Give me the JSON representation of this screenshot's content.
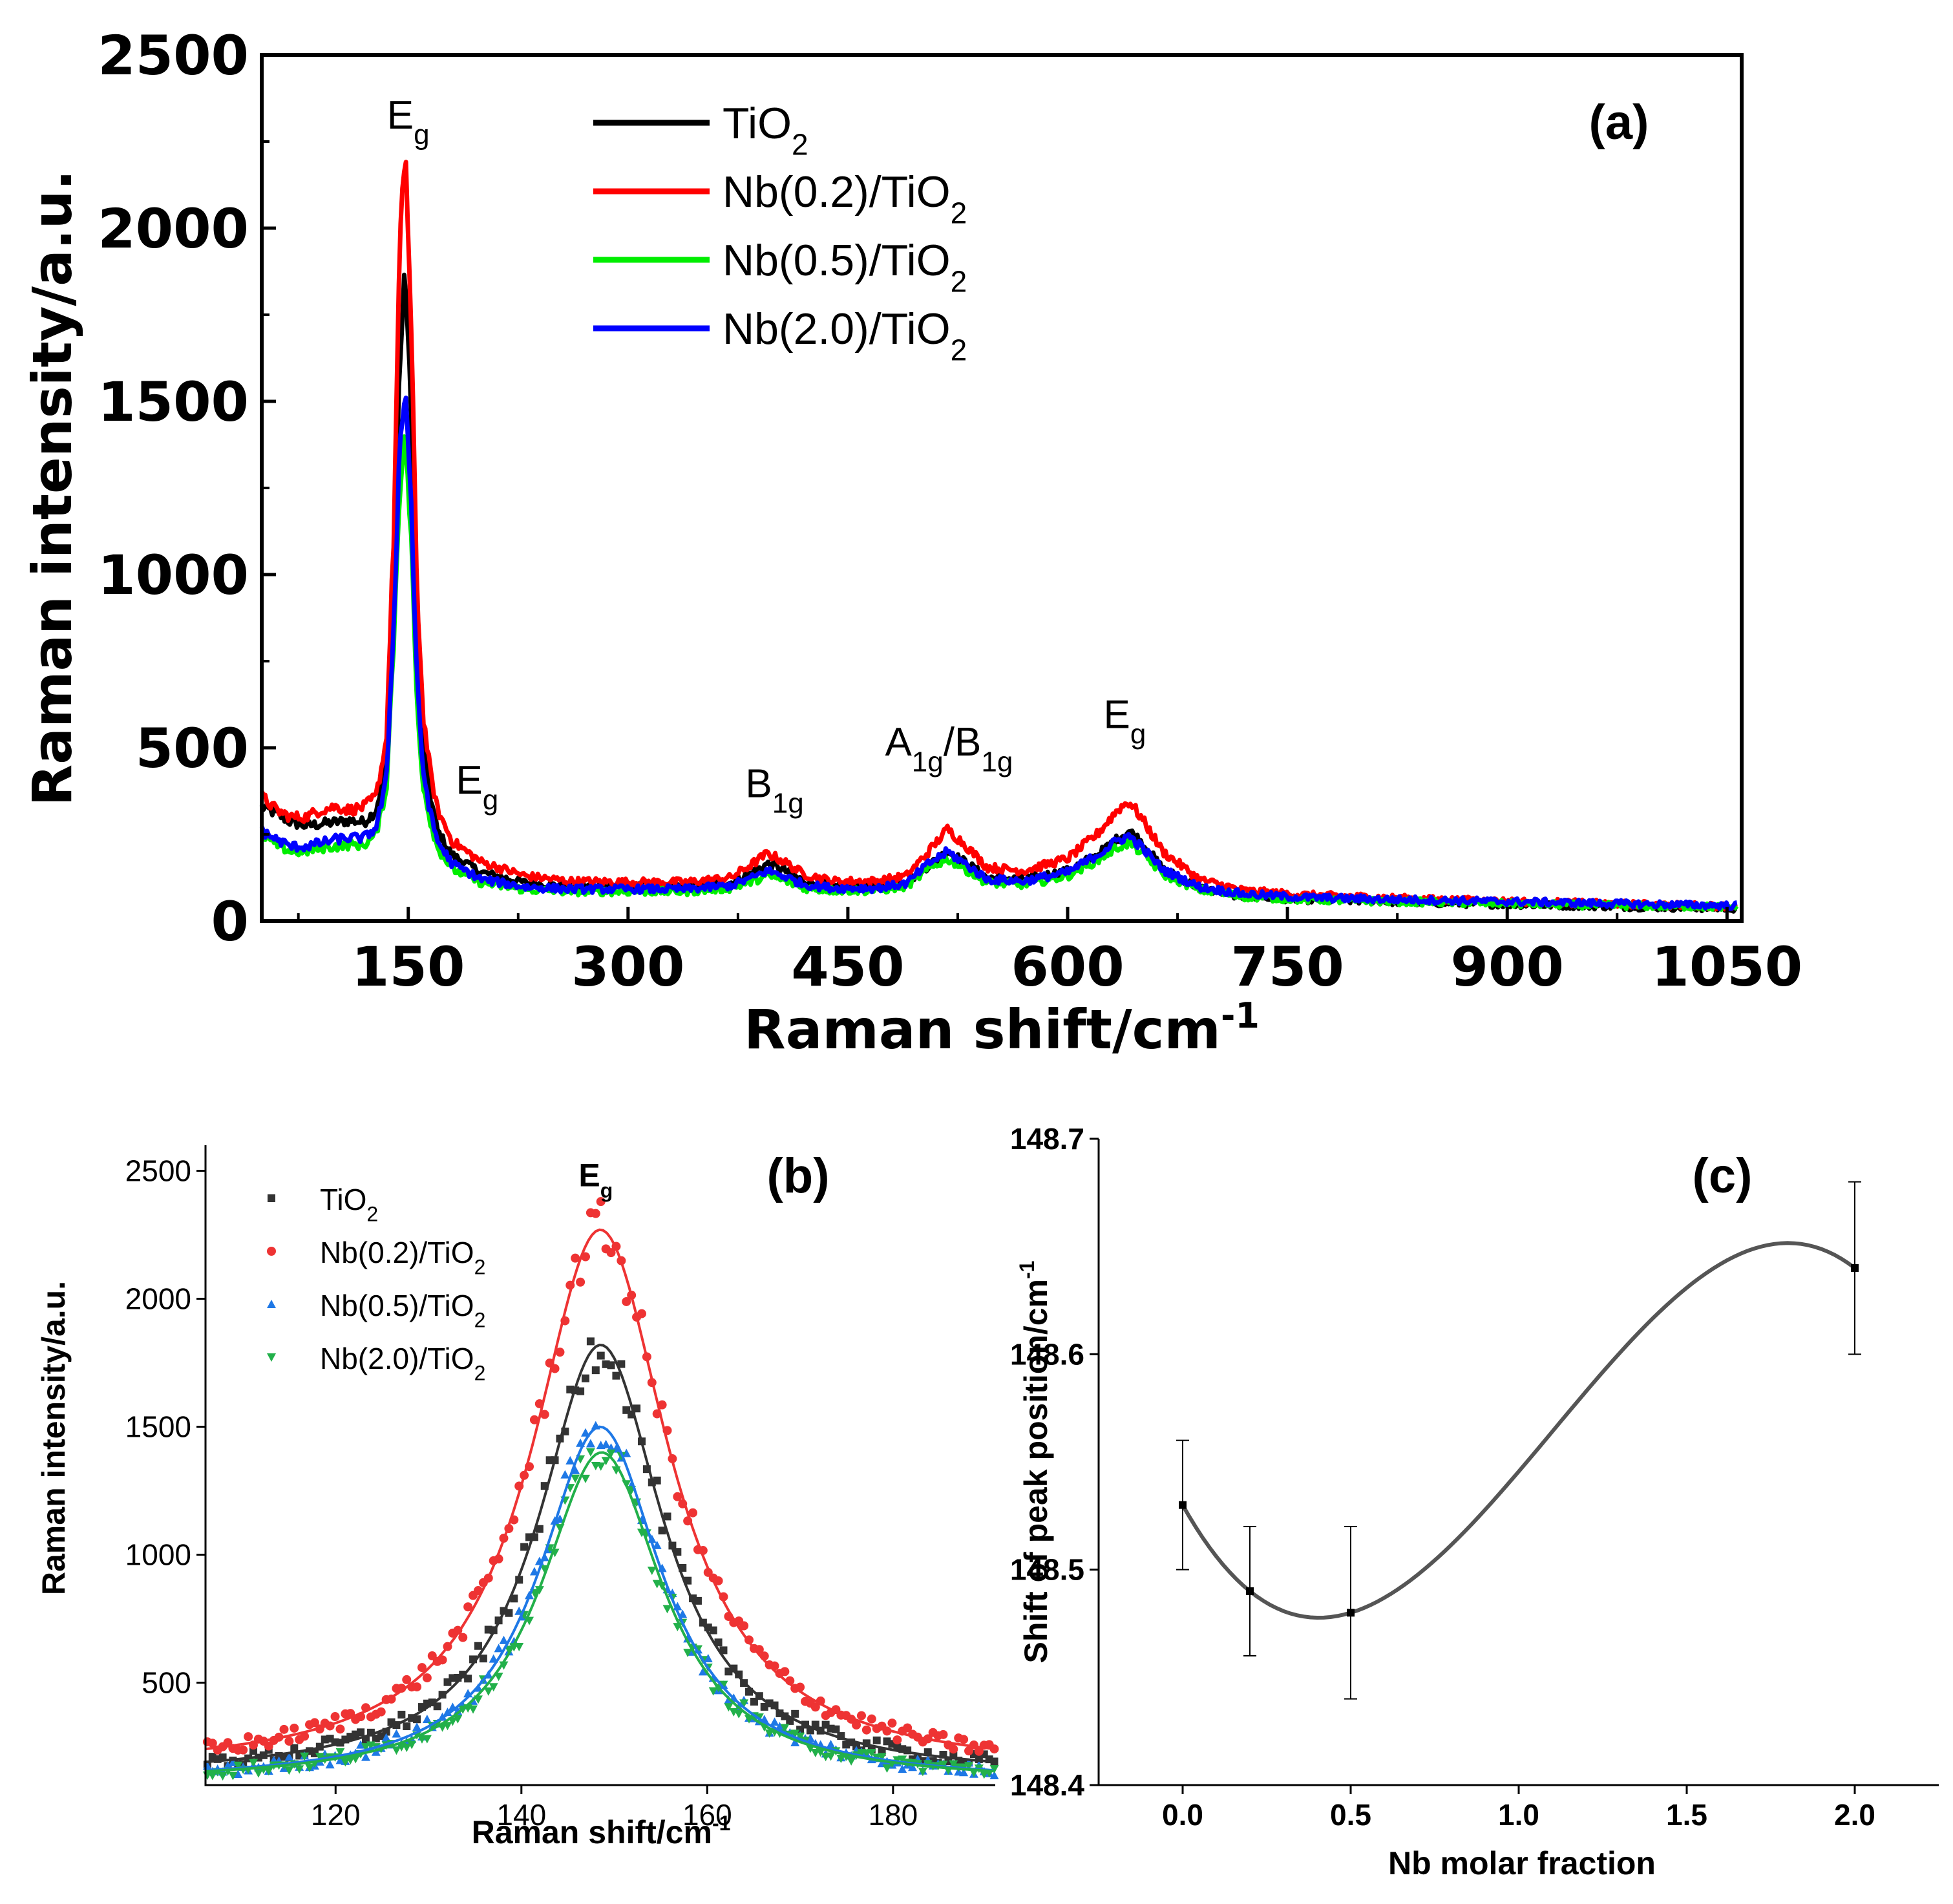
{
  "chart_data": [
    {
      "panel": "(a)",
      "type": "line",
      "xlabel": "Raman shift/cm",
      "xlabel_sup": "-1",
      "ylabel": "Raman intensity/a.u.",
      "xlim": [
        50,
        1060
      ],
      "ylim": [
        0,
        2500
      ],
      "xticks": [
        "150",
        "300",
        "450",
        "600",
        "750",
        "900",
        "1050"
      ],
      "yticks": [
        "0",
        "500",
        "1000",
        "1500",
        "2000",
        "2500"
      ],
      "legend_position": "top",
      "series": [
        {
          "name": "TiO",
          "name_sub": "2",
          "color": "#000000",
          "x": [
            50,
            60,
            70,
            80,
            90,
            100,
            110,
            120,
            128,
            135,
            140,
            144,
            148,
            152,
            156,
            160,
            165,
            170,
            180,
            200,
            230,
            260,
            300,
            340,
            370,
            385,
            395,
            405,
            420,
            440,
            470,
            490,
            505,
            518,
            530,
            545,
            570,
            600,
            620,
            635,
            642,
            650,
            665,
            690,
            720,
            760,
            800,
            850,
            900,
            950,
            1000,
            1060
          ],
          "y": [
            330,
            310,
            285,
            275,
            280,
            285,
            290,
            285,
            320,
            450,
            900,
            1600,
            1880,
            1450,
            800,
            520,
            360,
            260,
            190,
            140,
            110,
            100,
            100,
            98,
            110,
            140,
            165,
            150,
            115,
            100,
            100,
            110,
            160,
            200,
            170,
            125,
            120,
            145,
            190,
            240,
            260,
            230,
            150,
            95,
            70,
            62,
            58,
            52,
            48,
            44,
            40,
            36
          ]
        },
        {
          "name": "Nb(0.2)/TiO",
          "name_sub": "2",
          "color": "#ff0000",
          "x": [
            50,
            60,
            70,
            80,
            90,
            100,
            110,
            120,
            128,
            135,
            140,
            144,
            148,
            152,
            156,
            160,
            165,
            170,
            180,
            200,
            230,
            260,
            300,
            340,
            370,
            385,
            395,
            405,
            420,
            440,
            470,
            490,
            505,
            518,
            530,
            545,
            570,
            600,
            620,
            635,
            642,
            650,
            665,
            690,
            720,
            760,
            800,
            850,
            900,
            950,
            1000,
            1060
          ],
          "y": [
            360,
            320,
            300,
            300,
            320,
            330,
            320,
            330,
            360,
            520,
            1100,
            1900,
            2250,
            1700,
            950,
            600,
            430,
            320,
            230,
            170,
            130,
            115,
            112,
            112,
            125,
            165,
            195,
            175,
            135,
            115,
            115,
            130,
            200,
            265,
            220,
            155,
            145,
            180,
            250,
            325,
            345,
            300,
            200,
            120,
            88,
            75,
            70,
            62,
            57,
            52,
            47,
            42
          ]
        },
        {
          "name": "Nb(0.5)/TiO",
          "name_sub": "2",
          "color": "#00ee00",
          "x": [
            50,
            60,
            70,
            80,
            90,
            100,
            110,
            120,
            128,
            135,
            140,
            144,
            148,
            152,
            156,
            160,
            165,
            170,
            180,
            200,
            230,
            260,
            300,
            340,
            370,
            385,
            395,
            405,
            420,
            440,
            470,
            490,
            505,
            518,
            530,
            545,
            570,
            600,
            620,
            635,
            642,
            650,
            665,
            690,
            720,
            760,
            800,
            850,
            900,
            950,
            1000,
            1060
          ],
          "y": [
            250,
            220,
            200,
            200,
            210,
            215,
            220,
            220,
            250,
            380,
            800,
            1250,
            1400,
            1100,
            620,
            400,
            290,
            210,
            150,
            110,
            90,
            85,
            85,
            85,
            95,
            115,
            130,
            120,
            95,
            88,
            88,
            100,
            150,
            180,
            150,
            110,
            105,
            130,
            175,
            215,
            225,
            200,
            135,
            90,
            70,
            62,
            58,
            54,
            50,
            46,
            43,
            40
          ]
        },
        {
          "name": "Nb(2.0)/TiO",
          "name_sub": "2",
          "color": "#0000ff",
          "x": [
            50,
            60,
            70,
            80,
            90,
            100,
            110,
            120,
            128,
            135,
            140,
            144,
            148,
            152,
            156,
            160,
            165,
            170,
            180,
            200,
            230,
            260,
            300,
            340,
            370,
            385,
            395,
            405,
            420,
            440,
            470,
            490,
            505,
            518,
            530,
            545,
            570,
            600,
            620,
            635,
            642,
            650,
            665,
            690,
            720,
            760,
            800,
            850,
            900,
            950,
            1000,
            1060
          ],
          "y": [
            260,
            235,
            215,
            215,
            225,
            235,
            240,
            240,
            270,
            400,
            850,
            1350,
            1550,
            1200,
            680,
            440,
            310,
            230,
            165,
            120,
            98,
            92,
            92,
            92,
            102,
            125,
            145,
            132,
            105,
            95,
            95,
            108,
            165,
            200,
            165,
            120,
            115,
            140,
            190,
            235,
            245,
            215,
            148,
            98,
            78,
            68,
            64,
            60,
            56,
            52,
            48,
            44
          ]
        }
      ],
      "annotations": [
        {
          "text": "E",
          "sub": "g",
          "x": 150,
          "y": 2250
        },
        {
          "text": "E",
          "sub": "g",
          "x": 197,
          "y": 330
        },
        {
          "text": "B",
          "sub": "1g",
          "x": 400,
          "y": 320
        },
        {
          "text": "A",
          "sub": "1g",
          "text2": "/B",
          "sub2": "1g",
          "x": 519,
          "y": 440
        },
        {
          "text": "E",
          "sub": "g",
          "x": 639,
          "y": 520
        }
      ]
    },
    {
      "panel": "(b)",
      "type": "scatter",
      "xlabel": "Raman shift/cm",
      "xlabel_sup": "-1",
      "ylabel": "Raman intensity/a.u.",
      "xlim": [
        106,
        191
      ],
      "ylim": [
        100,
        2600
      ],
      "xticks": [
        "120",
        "140",
        "160",
        "180"
      ],
      "yticks": [
        "500",
        "1000",
        "1500",
        "2000",
        "2500"
      ],
      "legend_position": "top-left",
      "annotation": {
        "text": "E",
        "sub": "g",
        "x": 148,
        "y": 2440
      },
      "series": [
        {
          "name": "TiO",
          "name_sub": "2",
          "color": "#333333",
          "marker": "square",
          "peak_x": 148.53,
          "peak_y": 1820,
          "baseline": 130,
          "hwhm": 8.2
        },
        {
          "name": "Nb(0.2)/TiO",
          "name_sub": "2",
          "color": "#ee3333",
          "marker": "circle",
          "peak_x": 148.49,
          "peak_y": 2270,
          "baseline": 150,
          "hwhm": 9.0
        },
        {
          "name": "Nb(0.5)/TiO",
          "name_sub": "2",
          "color": "#1e78e6",
          "marker": "triangle-up",
          "peak_x": 148.48,
          "peak_y": 1500,
          "baseline": 110,
          "hwhm": 8.0
        },
        {
          "name": "Nb(2.0)/TiO",
          "name_sub": "2",
          "color": "#22b04a",
          "marker": "triangle-down",
          "peak_x": 148.64,
          "peak_y": 1400,
          "baseline": 110,
          "hwhm": 8.0
        }
      ]
    },
    {
      "panel": "(c)",
      "type": "scatter",
      "xlabel": "Nb molar fraction",
      "ylabel": "Shift of peak position/cm",
      "ylabel_sup": "-1",
      "xlim": [
        -0.25,
        2.25
      ],
      "ylim": [
        148.4,
        148.7
      ],
      "xticks": [
        "0.0",
        "0.5",
        "1.0",
        "1.5",
        "2.0"
      ],
      "yticks": [
        "148.4",
        "148.5",
        "148.6",
        "148.7"
      ],
      "points": {
        "x": [
          0.0,
          0.2,
          0.5,
          2.0
        ],
        "y": [
          148.53,
          148.49,
          148.48,
          148.64
        ],
        "err": [
          0.03,
          0.03,
          0.04,
          0.04
        ]
      },
      "fit_color": "#555555"
    }
  ]
}
